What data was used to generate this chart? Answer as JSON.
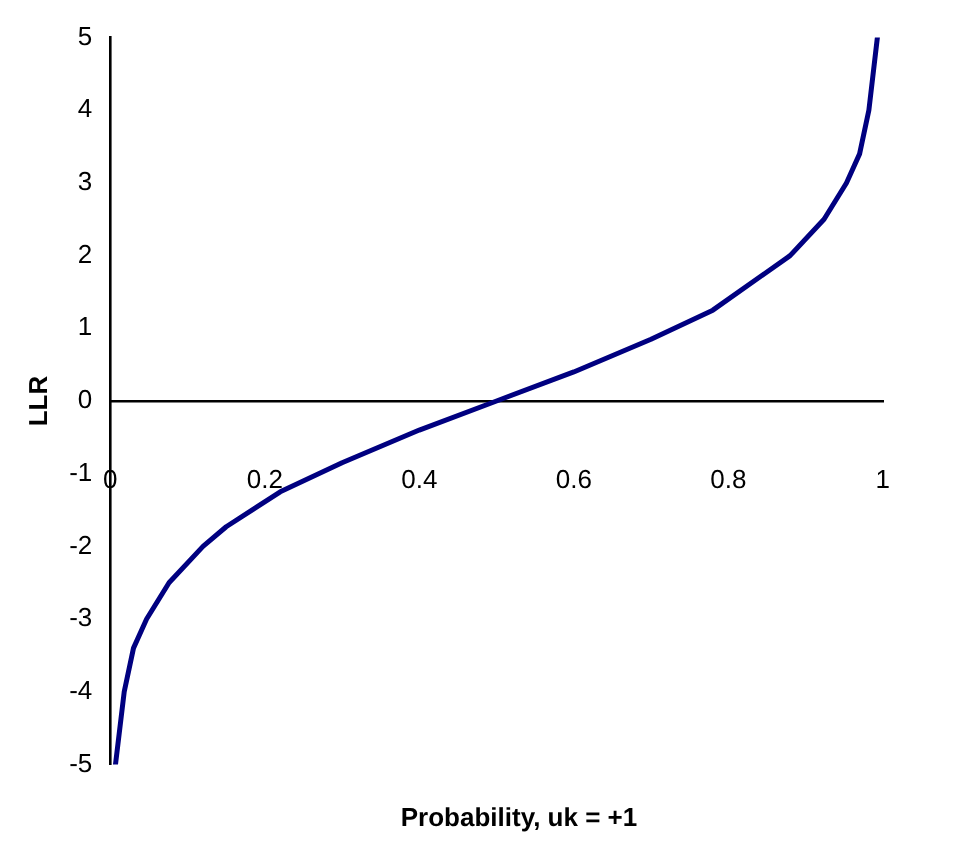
{
  "chart_data": {
    "type": "line",
    "xlabel": "Probability, uk = +1",
    "ylabel": "LLR",
    "series": [
      {
        "color": "#000080",
        "x": [
          0.0067,
          0.018,
          0.03,
          0.047,
          0.076,
          0.12,
          0.15,
          0.22,
          0.3,
          0.4,
          0.5,
          0.6,
          0.7,
          0.78,
          0.88,
          0.924,
          0.953,
          0.97,
          0.982,
          0.993
        ],
        "values": [
          -5,
          -4,
          -3.4,
          -3,
          -2.5,
          -2,
          -1.73,
          -1.25,
          -0.85,
          -0.4,
          0,
          0.4,
          0.85,
          1.25,
          2,
          2.5,
          3,
          3.4,
          4,
          5
        ]
      }
    ],
    "xlim": [
      0,
      1
    ],
    "xticks": [
      0,
      0.2,
      0.4,
      0.6,
      0.8,
      1
    ],
    "ylim": [
      -5,
      5
    ],
    "yticks": [
      -5,
      -4,
      -3,
      -2,
      -1,
      0,
      1,
      2,
      3,
      4,
      5
    ],
    "grid": false,
    "legend": false,
    "marker": "none",
    "line_style": "solid"
  }
}
